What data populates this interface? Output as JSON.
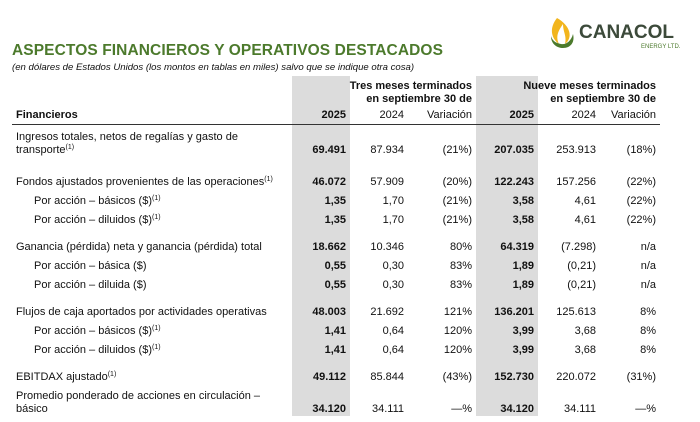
{
  "header": {
    "logo": {
      "name": "CANACOL",
      "tagline": "ENERGY LTD."
    },
    "title": "ASPECTOS FINANCIEROS Y OPERATIVOS DESTACADOS",
    "subtitle": "(en dólares de Estados Unidos (los montos en tablas en miles) salvo que se indique otra cosa)"
  },
  "table": {
    "group_headers": [
      "Tres meses terminados en septiembre 30 de",
      "Nueve meses terminados en septiembre 30 de"
    ],
    "columns": [
      "Financieros",
      "2025",
      "2024",
      "Variación",
      "2025",
      "2024",
      "Variación"
    ],
    "rows": [
      {
        "label": "Ingresos totales, netos de regalías y gasto de transporte",
        "note": "(1)",
        "values": [
          "69.491",
          "87.934",
          "(21%)",
          "207.035",
          "253.913",
          "(18%)"
        ]
      },
      {
        "label": "Fondos ajustados provenientes de las operaciones",
        "note": "(1)",
        "values": [
          "46.072",
          "57.909",
          "(20%)",
          "122.243",
          "157.256",
          "(22%)"
        ]
      },
      {
        "label": "Por acción – básicos ($)",
        "note": "(1)",
        "values": [
          "1,35",
          "1,70",
          "(21%)",
          "3,58",
          "4,61",
          "(22%)"
        ]
      },
      {
        "label": "Por acción – diluidos ($)",
        "note": "(1)",
        "values": [
          "1,35",
          "1,70",
          "(21%)",
          "3,58",
          "4,61",
          "(22%)"
        ]
      },
      {
        "label": "Ganancia (pérdida) neta y ganancia (pérdida) total",
        "values": [
          "18.662",
          "10.346",
          "80%",
          "64.319",
          "(7.298)",
          "n/a"
        ]
      },
      {
        "label": "Por acción – básica ($)",
        "values": [
          "0,55",
          "0,30",
          "83%",
          "1,89",
          "(0,21)",
          "n/a"
        ]
      },
      {
        "label": "Por acción – diluida ($)",
        "values": [
          "0,55",
          "0,30",
          "83%",
          "1,89",
          "(0,21)",
          "n/a"
        ]
      },
      {
        "label": "Flujos de caja aportados por actividades operativas",
        "values": [
          "48.003",
          "21.692",
          "121%",
          "136.201",
          "125.613",
          "8%"
        ]
      },
      {
        "label": "Por acción – básicos ($)",
        "note": "(1)",
        "values": [
          "1,41",
          "0,64",
          "120%",
          "3,99",
          "3,68",
          "8%"
        ]
      },
      {
        "label": "Por acción – diluidos ($)",
        "note": "(1)",
        "values": [
          "1,41",
          "0,64",
          "120%",
          "3,99",
          "3,68",
          "8%"
        ]
      },
      {
        "label": "EBITDAX ajustado",
        "note": "(1)",
        "values": [
          "49.112",
          "85.844",
          "(43%)",
          "152.730",
          "220.072",
          "(31%)"
        ]
      },
      {
        "label": "Promedio ponderado de acciones en circulación – básico",
        "values": [
          "34.120",
          "34.111",
          "—%",
          "34.120",
          "34.111",
          "—%"
        ]
      }
    ]
  }
}
